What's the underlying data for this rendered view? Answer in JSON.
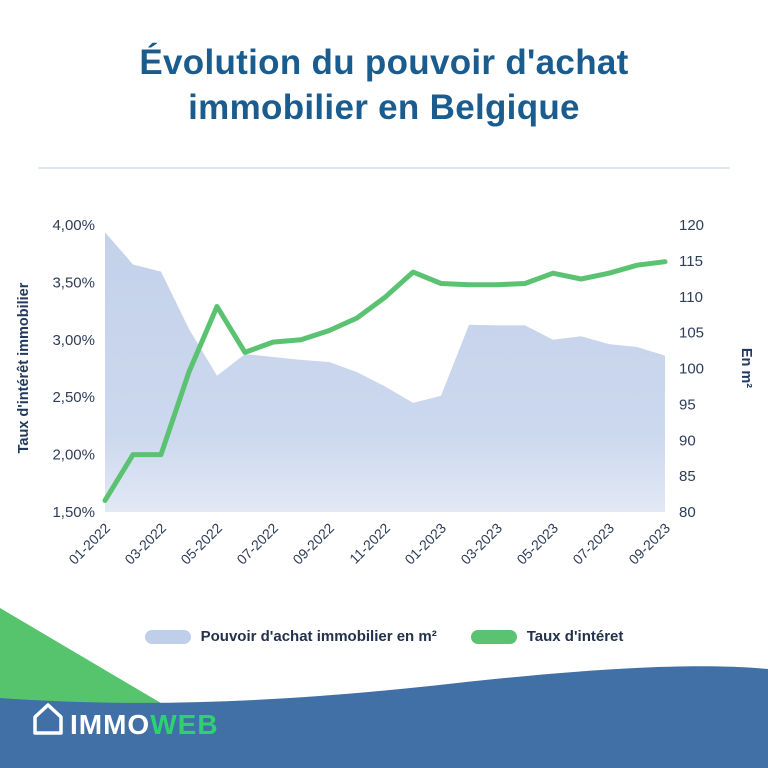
{
  "title": {
    "line1": "Évolution du pouvoir d'achat",
    "line2": "immobilier en Belgique"
  },
  "chart_data": {
    "type": "area+line combo",
    "x": [
      "01-2022",
      "02-2022",
      "03-2022",
      "04-2022",
      "05-2022",
      "06-2022",
      "07-2022",
      "08-2022",
      "09-2022",
      "10-2022",
      "11-2022",
      "12-2022",
      "01-2023",
      "02-2023",
      "03-2023",
      "04-2023",
      "05-2023",
      "06-2023",
      "07-2023",
      "08-2023",
      "09-2023"
    ],
    "x_tick_labels": [
      "01-2022",
      "03-2022",
      "05-2022",
      "07-2022",
      "09-2022",
      "11-2022",
      "01-2023",
      "03-2023",
      "05-2023",
      "07-2023",
      "09-2023"
    ],
    "series": [
      {
        "name": "Pouvoir d'achat immobilier en m²",
        "type": "area",
        "axis": "right",
        "color": "#c0cfe9",
        "values": [
          119,
          114.5,
          113.5,
          105.5,
          99,
          102,
          101.6,
          101.2,
          100.9,
          99.5,
          97.5,
          95.2,
          96.2,
          106.1,
          106,
          106,
          104,
          104.5,
          103.4,
          103,
          101.8
        ]
      },
      {
        "name": "Taux d'intéret",
        "type": "line",
        "axis": "left",
        "color": "#5bc272",
        "values": [
          1.6,
          2.0,
          2.0,
          2.72,
          3.29,
          2.89,
          2.98,
          3.0,
          3.08,
          3.19,
          3.37,
          3.59,
          3.49,
          3.48,
          3.48,
          3.49,
          3.58,
          3.53,
          3.58,
          3.65,
          3.68
        ]
      }
    ],
    "left_axis": {
      "label": "Taux d'intérêt immobilier",
      "ticks": [
        "4,00%",
        "3,50%",
        "3,00%",
        "2,50%",
        "2,00%",
        "1,50%"
      ],
      "min": 1.5,
      "max": 4.0
    },
    "right_axis": {
      "label": "En m²",
      "ticks": [
        "120",
        "115",
        "110",
        "105",
        "100",
        "95",
        "90",
        "85",
        "80"
      ],
      "min": 80,
      "max": 120
    },
    "grid": false,
    "legend_position": "bottom"
  },
  "legend": {
    "items": [
      {
        "label": "Pouvoir d'achat immobilier en m²",
        "color": "#c0cfe9"
      },
      {
        "label": "Taux d'intéret",
        "color": "#5bc272"
      }
    ]
  },
  "footer": {
    "logo_immo": "IMMO",
    "logo_web": "WEB"
  },
  "colors": {
    "title": "#1b5c8e",
    "axis_text": "#2e3d58",
    "band_blue": "#4070a6",
    "wedge_green": "#55c46d",
    "logo_green": "#2fd06f",
    "logo_white": "#ffffff",
    "area_fill_top": "#c3d1ea",
    "area_fill_bottom": "#e2e9f5"
  }
}
